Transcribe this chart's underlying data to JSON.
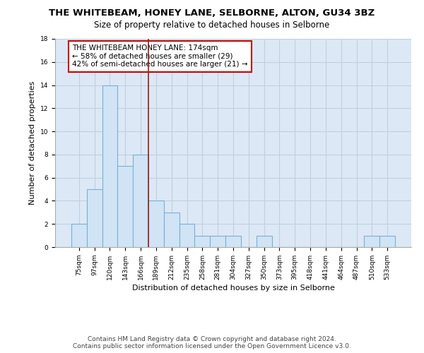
{
  "title": "THE WHITEBEAM, HONEY LANE, SELBORNE, ALTON, GU34 3BZ",
  "subtitle": "Size of property relative to detached houses in Selborne",
  "xlabel": "Distribution of detached houses by size in Selborne",
  "ylabel": "Number of detached properties",
  "categories": [
    "75sqm",
    "97sqm",
    "120sqm",
    "143sqm",
    "166sqm",
    "189sqm",
    "212sqm",
    "235sqm",
    "258sqm",
    "281sqm",
    "304sqm",
    "327sqm",
    "350sqm",
    "373sqm",
    "395sqm",
    "418sqm",
    "441sqm",
    "464sqm",
    "487sqm",
    "510sqm",
    "533sqm"
  ],
  "values": [
    2,
    5,
    14,
    7,
    8,
    4,
    3,
    2,
    1,
    1,
    1,
    0,
    1,
    0,
    0,
    0,
    0,
    0,
    0,
    1,
    1
  ],
  "bar_color": "#d0e4f5",
  "bar_edge_color": "#7bafd4",
  "bar_linewidth": 0.8,
  "vline_x": 4.5,
  "vline_color": "#9b1c1c",
  "vline_linewidth": 1.2,
  "annotation_text": "THE WHITEBEAM HONEY LANE: 174sqm\n← 58% of detached houses are smaller (29)\n42% of semi-detached houses are larger (21) →",
  "annotation_box_color": "#ffffff",
  "annotation_box_edge": "#cc0000",
  "ylim": [
    0,
    18
  ],
  "yticks": [
    0,
    2,
    4,
    6,
    8,
    10,
    12,
    14,
    16,
    18
  ],
  "background_color": "#dce8f5",
  "grid_color": "#c0d0e0",
  "footer_text": "Contains HM Land Registry data © Crown copyright and database right 2024.\nContains public sector information licensed under the Open Government Licence v3.0.",
  "title_fontsize": 9.5,
  "subtitle_fontsize": 8.5,
  "xlabel_fontsize": 8,
  "ylabel_fontsize": 8,
  "tick_fontsize": 6.5,
  "annotation_fontsize": 7.5,
  "footer_fontsize": 6.5
}
